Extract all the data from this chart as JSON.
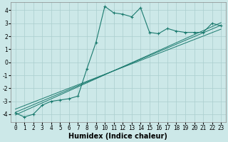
{
  "xlabel": "Humidex (Indice chaleur)",
  "ylabel": "",
  "bg_color": "#cce8e8",
  "line_color": "#1a7a6e",
  "grid_color": "#aacece",
  "xlim": [
    -0.5,
    23.5
  ],
  "ylim": [
    -4.6,
    4.6
  ],
  "xticks": [
    0,
    1,
    2,
    3,
    4,
    5,
    6,
    7,
    8,
    9,
    10,
    11,
    12,
    13,
    14,
    15,
    16,
    17,
    18,
    19,
    20,
    21,
    22,
    23
  ],
  "yticks": [
    -4,
    -3,
    -2,
    -1,
    0,
    1,
    2,
    3,
    4
  ],
  "series1_x": [
    0,
    1,
    2,
    3,
    4,
    5,
    6,
    7,
    8,
    9,
    10,
    11,
    12,
    13,
    14,
    15,
    16,
    17,
    18,
    19,
    20,
    21,
    22,
    23
  ],
  "series1_y": [
    -3.9,
    -4.2,
    -4.0,
    -3.3,
    -3.0,
    -2.9,
    -2.8,
    -2.6,
    -0.5,
    1.5,
    4.3,
    3.8,
    3.7,
    3.5,
    4.2,
    2.3,
    2.2,
    2.6,
    2.4,
    2.3,
    2.3,
    2.3,
    3.0,
    2.8
  ],
  "regression_lines": [
    {
      "x0": 0,
      "y0": -3.85,
      "x1": 23,
      "y1": 2.85
    },
    {
      "x0": 0,
      "y0": -3.6,
      "x1": 23,
      "y1": 2.55
    },
    {
      "x0": 0,
      "y0": -4.05,
      "x1": 23,
      "y1": 3.05
    }
  ],
  "tick_fontsize": 5.5,
  "xlabel_fontsize": 7
}
